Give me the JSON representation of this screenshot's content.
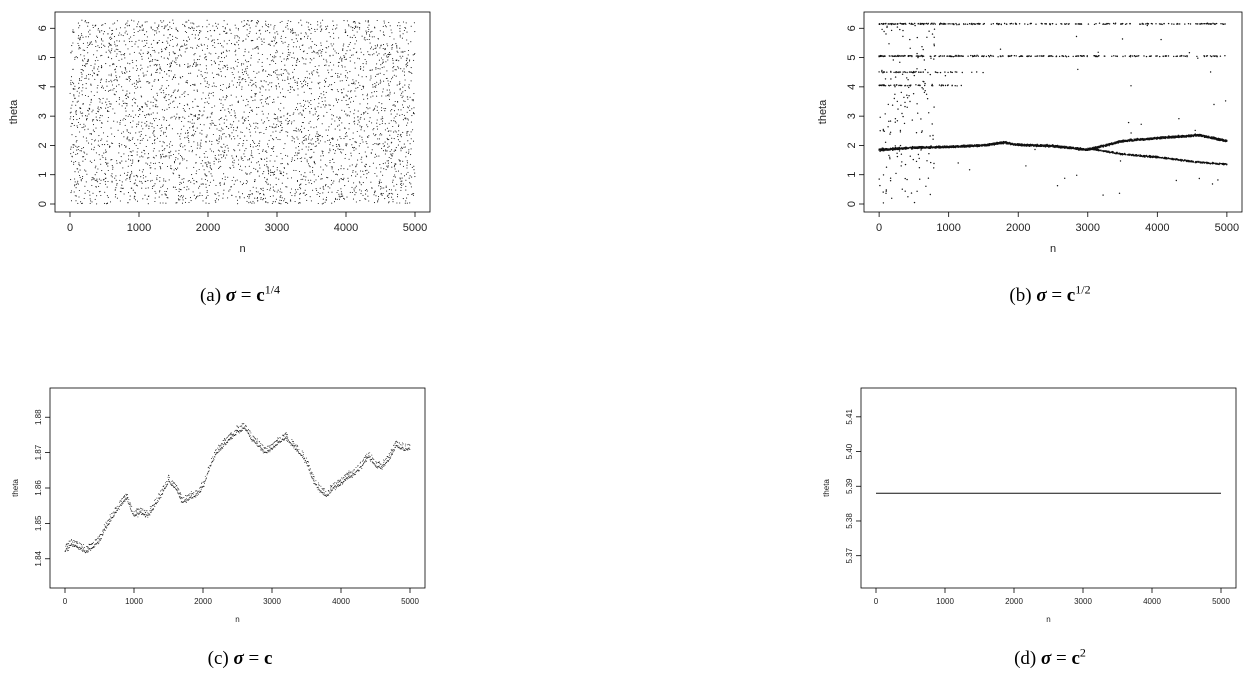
{
  "panels": [
    {
      "caption": {
        "label": "(a)",
        "sup": "1/4"
      },
      "chart_data": {
        "type": "scatter",
        "xlabel": "n",
        "ylabel": "theta",
        "xlim": [
          0,
          5000
        ],
        "ylim": [
          0,
          6.283
        ],
        "xticks": [
          "0",
          "1000",
          "2000",
          "3000",
          "4000",
          "5000"
        ],
        "yticks": [
          "0",
          "1",
          "2",
          "3",
          "4",
          "5",
          "6"
        ],
        "pattern": "uniform-random",
        "points": 4000,
        "description_values": {
          "y_min": 0,
          "y_max": 6.28
        }
      }
    },
    {
      "caption": {
        "label": "(b)",
        "sup": "1/2"
      },
      "chart_data": {
        "type": "scatter",
        "xlabel": "n",
        "ylabel": "theta",
        "xlim": [
          0,
          5000
        ],
        "ylim": [
          0,
          6.283
        ],
        "xticks": [
          "0",
          "1000",
          "2000",
          "3000",
          "4000",
          "5000"
        ],
        "yticks": [
          "0",
          "1",
          "2",
          "3",
          "4",
          "5",
          "6"
        ],
        "main_path": {
          "x": [
            0,
            500,
            1000,
            1500,
            1800,
            2000,
            2500,
            3000,
            3500,
            4000,
            4600,
            5000
          ],
          "y": [
            1.85,
            1.92,
            1.95,
            2.0,
            2.1,
            2.02,
            1.98,
            1.85,
            2.15,
            2.25,
            2.35,
            2.15
          ]
        },
        "branch_path": {
          "x": [
            3000,
            3500,
            4000,
            4500,
            5000
          ],
          "y": [
            1.9,
            1.7,
            1.6,
            1.45,
            1.35
          ]
        },
        "bands": [
          {
            "y": 6.15,
            "x_start": 0,
            "x_end": 5000
          },
          {
            "y": 5.05,
            "x_start": 0,
            "x_end": 5000
          },
          {
            "y": 4.5,
            "x_start": 0,
            "x_end": 1500
          },
          {
            "y": 4.05,
            "x_start": 0,
            "x_end": 1200
          }
        ]
      }
    },
    {
      "caption": {
        "label": "(c)",
        "sup": ""
      },
      "chart_data": {
        "type": "scatter",
        "xlabel": "n",
        "ylabel": "theta",
        "xlim": [
          0,
          5000
        ],
        "ylim": [
          1.834,
          1.886
        ],
        "xticks": [
          "0",
          "1000",
          "2000",
          "3000",
          "4000",
          "5000"
        ],
        "yticks": [
          "1.84",
          "1.85",
          "1.86",
          "1.87",
          "1.88"
        ],
        "path": {
          "x": [
            0,
            100,
            200,
            300,
            400,
            500,
            600,
            700,
            800,
            900,
            1000,
            1100,
            1200,
            1300,
            1400,
            1500,
            1600,
            1700,
            1800,
            1900,
            2000,
            2100,
            2200,
            2300,
            2400,
            2500,
            2600,
            2700,
            2800,
            2900,
            3000,
            3100,
            3200,
            3300,
            3400,
            3500,
            3600,
            3700,
            3800,
            3900,
            4000,
            4100,
            4200,
            4300,
            4400,
            4500,
            4600,
            4700,
            4800,
            4900,
            5000
          ],
          "y": [
            1.842,
            1.844,
            1.843,
            1.842,
            1.843,
            1.845,
            1.849,
            1.852,
            1.855,
            1.857,
            1.852,
            1.853,
            1.852,
            1.855,
            1.858,
            1.862,
            1.86,
            1.856,
            1.857,
            1.858,
            1.86,
            1.866,
            1.87,
            1.872,
            1.874,
            1.876,
            1.877,
            1.874,
            1.872,
            1.87,
            1.871,
            1.873,
            1.874,
            1.872,
            1.87,
            1.867,
            1.862,
            1.859,
            1.858,
            1.86,
            1.861,
            1.863,
            1.864,
            1.866,
            1.869,
            1.866,
            1.866,
            1.868,
            1.872,
            1.871,
            1.871
          ]
        }
      }
    },
    {
      "caption": {
        "label": "(d)",
        "sup": "2"
      },
      "chart_data": {
        "type": "line",
        "xlabel": "n",
        "ylabel": "theta",
        "xlim": [
          0,
          5000
        ],
        "ylim": [
          5.363,
          5.416
        ],
        "xticks": [
          "0",
          "1000",
          "2000",
          "3000",
          "4000",
          "5000"
        ],
        "yticks": [
          "5.37",
          "5.38",
          "5.39",
          "5.40",
          "5.41"
        ],
        "series": [
          {
            "x": [
              0,
              5000
            ],
            "y": [
              5.388,
              5.388
            ]
          }
        ]
      }
    }
  ]
}
